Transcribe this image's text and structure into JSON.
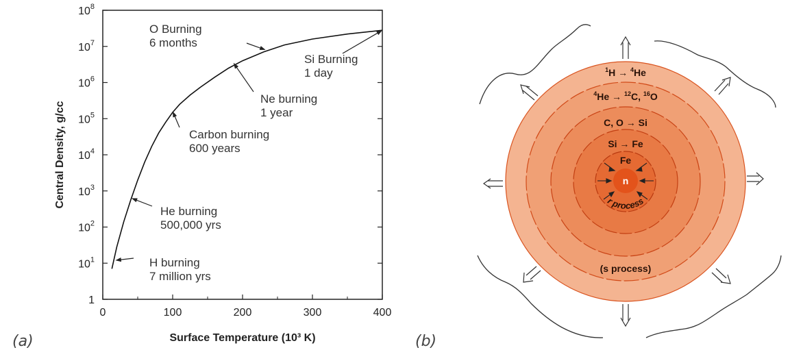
{
  "panels": {
    "a": "(a)",
    "b": "(b)"
  },
  "chart_data": {
    "type": "line",
    "xlabel": "Surface Temperature (10³ K)",
    "ylabel": "Central Density, g/cc",
    "xlim": [
      0,
      400
    ],
    "ylim_log10": [
      0,
      8
    ],
    "x_ticks": [
      "0",
      "100",
      "200",
      "300",
      "400"
    ],
    "x_tick_values": [
      0,
      100,
      200,
      300,
      400
    ],
    "y_ticks": [
      {
        "base": "1",
        "exp": ""
      },
      {
        "base": "10",
        "exp": "1"
      },
      {
        "base": "10",
        "exp": "2"
      },
      {
        "base": "10",
        "exp": "3"
      },
      {
        "base": "10",
        "exp": "4"
      },
      {
        "base": "10",
        "exp": "5"
      },
      {
        "base": "10",
        "exp": "6"
      },
      {
        "base": "10",
        "exp": "7"
      },
      {
        "base": "10",
        "exp": "8"
      }
    ],
    "y_tick_values": [
      1,
      10,
      100,
      1000,
      10000,
      100000,
      1000000,
      10000000,
      100000000
    ],
    "series": [
      {
        "x": [
          13,
          20,
          30,
          40,
          50,
          60,
          70,
          80,
          90,
          100,
          110,
          125,
          140,
          160,
          180,
          200,
          230,
          260,
          300,
          350,
          400
        ],
        "y": [
          7,
          28,
          140,
          560,
          2000,
          6300,
          17000,
          40000,
          80000,
          150000,
          250000,
          450000,
          750000,
          1400000,
          2500000,
          4000000,
          7000000,
          11000000,
          16000000,
          22000000,
          28000000
        ]
      }
    ],
    "annotations": [
      {
        "lines": [
          "H burning",
          "7 million yrs"
        ],
        "x": 18,
        "y": 12
      },
      {
        "lines": [
          "He burning",
          "500,000 yrs"
        ],
        "x": 41,
        "y": 630
      },
      {
        "lines": [
          "Carbon burning",
          "600 years"
        ],
        "x": 100,
        "y": 160000
      },
      {
        "lines": [
          "Ne burning",
          "1 year"
        ],
        "x": 187,
        "y": 3500000
      },
      {
        "lines": [
          "O Burning",
          "6 months"
        ],
        "x": 233,
        "y": 8000000
      },
      {
        "lines": [
          "Si Burning",
          "1 day"
        ],
        "x": 400,
        "y": 28000000
      }
    ]
  },
  "onion": {
    "shells": [
      {
        "label": "¹H → ⁴He",
        "color": "#f4b491"
      },
      {
        "label": "⁴He → ¹²C, ¹⁶O",
        "color": "#f0a075"
      },
      {
        "label": "C, O → Si",
        "color": "#ec8c5b"
      },
      {
        "label": "Si → Fe",
        "color": "#e87a45"
      },
      {
        "label": "Fe",
        "color": "#e56a33"
      },
      {
        "label": "n",
        "color": "#e3531b"
      }
    ],
    "r_process": "r process",
    "s_process": "(s process)"
  }
}
